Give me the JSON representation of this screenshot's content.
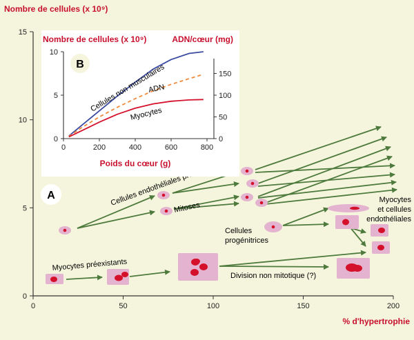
{
  "colors": {
    "background": "#f4f5dc",
    "inset_background": "#ffffff",
    "title_red": "#c8102e",
    "axis": "#333333",
    "arrow_green": "#4e7a3d",
    "cell_pink": "#e3b3cf",
    "nucleus_red": "#d4102a",
    "line_blue": "#3a4aa0",
    "line_orange": "#f08a3c",
    "line_red": "#d4102a"
  },
  "chart_data": [
    {
      "id": "A",
      "type": "diagram",
      "panel_label": "A",
      "ylabel": "Nombre de cellules (x 10⁹)",
      "xlabel": "% d'hypertrophie",
      "xlim": [
        0,
        200
      ],
      "ylim": [
        0,
        15
      ],
      "x_ticks": [
        0,
        50,
        100,
        150,
        200
      ],
      "y_ticks": [
        0,
        5,
        10,
        15
      ],
      "labels": {
        "endothelial_preexisting": "Cellules endothéliales préexistantes",
        "mitoses": "Mitoses",
        "myocytes_preexisting": "Myocytes préexistants",
        "nonmitotic_division": "Division non mitotique (?)",
        "progenitors_line1": "Cellules",
        "progenitors_line2": "progénitrices",
        "myocytes_endo_line1": "Myocytes",
        "myocytes_endo_line2": "et cellules",
        "myocytes_endo_line3": "endothéliales"
      }
    },
    {
      "id": "B",
      "type": "line",
      "panel_label": "B",
      "ylabel_left": "Nombre de cellules (x 10⁹)",
      "ylabel_right": "ADN/cœur (mg)",
      "xlabel": "Poids du cœur (g)",
      "xlim": [
        0,
        800
      ],
      "ylim_left": [
        0,
        10
      ],
      "ylim_right": [
        0,
        200
      ],
      "x_ticks": [
        0,
        200,
        400,
        600,
        800
      ],
      "y_ticks_left": [
        0,
        5,
        10
      ],
      "y_ticks_right": [
        0,
        50,
        100,
        150
      ],
      "x": [
        30,
        100,
        200,
        300,
        400,
        500,
        600,
        700,
        780
      ],
      "series": [
        {
          "name": "Cellules non musculaires",
          "axis": "left",
          "style": "solid",
          "color": "#3a4aa0",
          "values": [
            0.3,
            1.5,
            3.2,
            4.9,
            6.5,
            8.0,
            9.1,
            9.8,
            10.0
          ]
        },
        {
          "name": "ADN",
          "axis": "right",
          "style": "dashed",
          "color": "#f08a3c",
          "values": [
            5,
            25,
            50,
            72,
            92,
            110,
            125,
            138,
            148
          ]
        },
        {
          "name": "Myocytes",
          "axis": "left",
          "style": "solid",
          "color": "#d4102a",
          "values": [
            0.2,
            0.9,
            1.9,
            2.8,
            3.5,
            4.0,
            4.3,
            4.45,
            4.5
          ]
        }
      ]
    }
  ]
}
